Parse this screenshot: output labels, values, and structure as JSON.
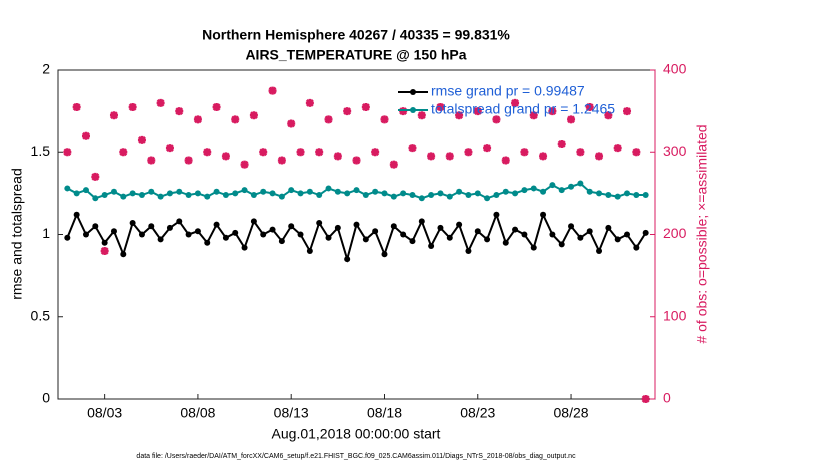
{
  "chart_data": {
    "type": "line",
    "title": "Northern Hemisphere 40267 / 40335 = 99.831%",
    "subtitle": "AIRS_TEMPERATURE @ 150 hPa",
    "x_label": "Aug.01,2018 00:00:00 start",
    "y_label": "rmse and totalspread",
    "y2_label": "# of obs: o=possible; ×=assimilated",
    "footnote": "data file: /Users/raeder/DAI/ATM_forcXX/CAM6_setup/f.e21.FHIST_BGC.f09_025.CAM6assim.011/Diags_NTrS_2018-08/obs_diag_output.nc",
    "x": [
      0,
      0.5,
      1,
      1.5,
      2,
      2.5,
      3,
      3.5,
      4,
      4.5,
      5,
      5.5,
      6,
      6.5,
      7,
      7.5,
      8,
      8.5,
      9,
      9.5,
      10,
      10.5,
      11,
      11.5,
      12,
      12.5,
      13,
      13.5,
      14,
      14.5,
      15,
      15.5,
      16,
      16.5,
      17,
      17.5,
      18,
      18.5,
      19,
      19.5,
      20,
      20.5,
      21,
      21.5,
      22,
      22.5,
      23,
      23.5,
      24,
      24.5,
      25,
      25.5,
      26,
      26.5,
      27,
      27.5,
      28,
      28.5,
      29,
      29.5,
      30,
      30.5,
      31
    ],
    "xlim": [
      -0.5,
      31.5
    ],
    "xticks": [
      {
        "value": 2,
        "label": "08/03"
      },
      {
        "value": 7,
        "label": "08/08"
      },
      {
        "value": 12,
        "label": "08/13"
      },
      {
        "value": 17,
        "label": "08/18"
      },
      {
        "value": 22,
        "label": "08/23"
      },
      {
        "value": 27,
        "label": "08/28"
      }
    ],
    "ylim": [
      0,
      2
    ],
    "yticks": [
      0,
      0.5,
      1,
      1.5,
      2
    ],
    "y2lim": [
      0,
      400
    ],
    "y2ticks": [
      0,
      100,
      200,
      300,
      400
    ],
    "legend": "upper right",
    "series": [
      {
        "name": "rmse grand pr = 0.99487",
        "color": "#000000",
        "values": [
          0.98,
          1.12,
          1.0,
          1.05,
          0.95,
          1.02,
          0.88,
          1.07,
          1.0,
          1.05,
          0.97,
          1.04,
          1.08,
          1.0,
          1.02,
          0.95,
          1.06,
          0.98,
          1.01,
          0.92,
          1.08,
          1.0,
          1.03,
          0.96,
          1.05,
          1.0,
          0.9,
          1.07,
          0.98,
          1.04,
          0.85,
          1.06,
          0.97,
          1.02,
          0.88,
          1.05,
          1.0,
          0.96,
          1.08,
          0.93,
          1.04,
          0.98,
          1.06,
          0.9,
          1.02,
          0.97,
          1.12,
          0.95,
          1.03,
          1.0,
          0.92,
          1.12,
          1.0,
          0.94,
          1.05,
          0.98,
          1.02,
          0.9,
          1.04,
          0.97,
          1.0,
          0.92,
          1.01
        ]
      },
      {
        "name": "totalspread grand pr = 1.2465",
        "color": "#008b8b",
        "values": [
          1.28,
          1.25,
          1.27,
          1.22,
          1.24,
          1.26,
          1.23,
          1.25,
          1.24,
          1.26,
          1.23,
          1.25,
          1.26,
          1.24,
          1.25,
          1.23,
          1.26,
          1.24,
          1.25,
          1.27,
          1.24,
          1.26,
          1.25,
          1.23,
          1.27,
          1.25,
          1.26,
          1.24,
          1.28,
          1.26,
          1.25,
          1.27,
          1.24,
          1.26,
          1.25,
          1.23,
          1.25,
          1.24,
          1.22,
          1.24,
          1.25,
          1.23,
          1.26,
          1.24,
          1.25,
          1.22,
          1.24,
          1.26,
          1.25,
          1.27,
          1.28,
          1.26,
          1.3,
          1.27,
          1.29,
          1.31,
          1.26,
          1.25,
          1.24,
          1.23,
          1.25,
          1.24,
          1.24
        ]
      },
      {
        "axis": "y2",
        "color": "#d81b60",
        "values": [
          300,
          355,
          320,
          270,
          180,
          345,
          300,
          355,
          315,
          290,
          360,
          305,
          350,
          290,
          340,
          300,
          355,
          295,
          340,
          285,
          345,
          300,
          375,
          290,
          335,
          300,
          360,
          300,
          340,
          295,
          350,
          290,
          355,
          300,
          340,
          285,
          350,
          305,
          345,
          295,
          355,
          295,
          345,
          300,
          350,
          305,
          340,
          290,
          360,
          300,
          345,
          295,
          350,
          310,
          340,
          300,
          355,
          295,
          345,
          305,
          350,
          300,
          0
        ]
      }
    ]
  }
}
